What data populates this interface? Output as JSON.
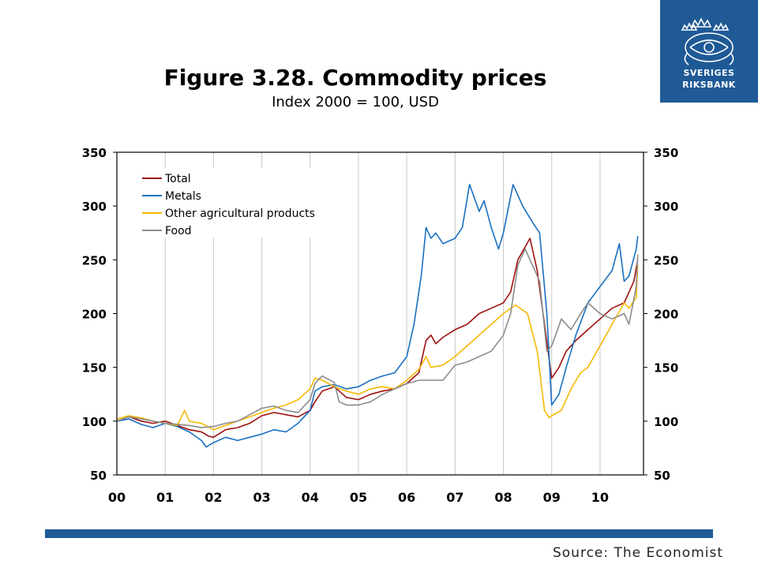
{
  "logo": {
    "line1": "SVERIGES",
    "line2": "RIKSBANK",
    "icon": "crown-crest-icon"
  },
  "source": "Source: The Economist",
  "chart_data": {
    "type": "line",
    "title": "Figure 3.28. Commodity prices",
    "subtitle": "Index 2000 = 100, USD",
    "xlabel": "",
    "ylabel": "",
    "ylim": [
      50,
      350
    ],
    "yticks": [
      50,
      100,
      150,
      200,
      250,
      300,
      350
    ],
    "xlim": [
      2000,
      2010.9
    ],
    "xticks": [
      2000,
      2001,
      2002,
      2003,
      2004,
      2005,
      2006,
      2007,
      2008,
      2009,
      2010
    ],
    "xtick_labels": [
      "00",
      "01",
      "02",
      "03",
      "04",
      "05",
      "06",
      "07",
      "08",
      "09",
      "10"
    ],
    "grid": "vertical",
    "legend": "top-left",
    "series": [
      {
        "name": "Total",
        "color": "#a01010",
        "x": [
          2000,
          2000.25,
          2000.5,
          2000.75,
          2001,
          2001.25,
          2001.5,
          2001.75,
          2001.9,
          2002,
          2002.25,
          2002.5,
          2002.75,
          2003,
          2003.25,
          2003.5,
          2003.75,
          2004,
          2004.1,
          2004.25,
          2004.5,
          2004.75,
          2005,
          2005.25,
          2005.5,
          2005.75,
          2006,
          2006.25,
          2006.4,
          2006.5,
          2006.6,
          2006.75,
          2007,
          2007.25,
          2007.5,
          2007.75,
          2008,
          2008.15,
          2008.3,
          2008.45,
          2008.55,
          2008.7,
          2008.85,
          2009,
          2009.15,
          2009.3,
          2009.5,
          2009.75,
          2010,
          2010.25,
          2010.5,
          2010.7,
          2010.78
        ],
        "y": [
          100,
          104,
          100,
          98,
          100,
          96,
          92,
          90,
          86,
          85,
          92,
          94,
          98,
          105,
          108,
          106,
          104,
          110,
          118,
          128,
          132,
          122,
          120,
          125,
          128,
          130,
          135,
          145,
          175,
          180,
          172,
          178,
          185,
          190,
          200,
          205,
          210,
          220,
          250,
          262,
          270,
          240,
          190,
          140,
          150,
          165,
          175,
          185,
          195,
          205,
          210,
          230,
          250
        ]
      },
      {
        "name": "Metals",
        "color": "#1a6fc0",
        "x": [
          2000,
          2000.25,
          2000.5,
          2000.75,
          2001,
          2001.25,
          2001.5,
          2001.75,
          2001.85,
          2002,
          2002.25,
          2002.5,
          2002.75,
          2003,
          2003.25,
          2003.5,
          2003.75,
          2004,
          2004.1,
          2004.25,
          2004.5,
          2004.75,
          2005,
          2005.25,
          2005.5,
          2005.75,
          2006,
          2006.15,
          2006.3,
          2006.4,
          2006.5,
          2006.6,
          2006.75,
          2007,
          2007.15,
          2007.3,
          2007.5,
          2007.6,
          2007.75,
          2007.9,
          2008,
          2008.2,
          2008.4,
          2008.6,
          2008.75,
          2008.9,
          2009,
          2009.15,
          2009.3,
          2009.5,
          2009.75,
          2010,
          2010.25,
          2010.4,
          2010.5,
          2010.6,
          2010.75,
          2010.78
        ],
        "y": [
          100,
          102,
          97,
          94,
          98,
          95,
          90,
          82,
          76,
          80,
          85,
          82,
          85,
          88,
          92,
          90,
          98,
          110,
          128,
          132,
          134,
          130,
          132,
          138,
          142,
          145,
          160,
          190,
          235,
          280,
          270,
          275,
          265,
          270,
          280,
          320,
          295,
          305,
          280,
          260,
          275,
          320,
          300,
          285,
          275,
          200,
          115,
          125,
          150,
          180,
          210,
          225,
          240,
          265,
          230,
          235,
          260,
          272
        ]
      },
      {
        "name": "Other agricultural products",
        "color": "#f5b800",
        "x": [
          2000,
          2000.25,
          2000.5,
          2000.75,
          2001,
          2001.25,
          2001.4,
          2001.5,
          2001.75,
          2002,
          2002.25,
          2002.5,
          2002.75,
          2003,
          2003.25,
          2003.5,
          2003.75,
          2004,
          2004.1,
          2004.25,
          2004.5,
          2004.75,
          2005,
          2005.25,
          2005.5,
          2005.75,
          2006,
          2006.25,
          2006.4,
          2006.5,
          2006.75,
          2007,
          2007.25,
          2007.5,
          2007.75,
          2008,
          2008.25,
          2008.5,
          2008.7,
          2008.85,
          2008.95,
          2009,
          2009.2,
          2009.4,
          2009.6,
          2009.75,
          2010,
          2010.25,
          2010.5,
          2010.6,
          2010.75,
          2010.78
        ],
        "y": [
          102,
          105,
          103,
          100,
          98,
          96,
          110,
          100,
          98,
          92,
          96,
          100,
          104,
          108,
          112,
          115,
          120,
          130,
          140,
          138,
          132,
          128,
          125,
          130,
          132,
          130,
          138,
          148,
          160,
          150,
          152,
          160,
          170,
          180,
          190,
          200,
          208,
          200,
          165,
          110,
          103,
          105,
          110,
          130,
          145,
          150,
          170,
          190,
          210,
          205,
          215,
          245
        ]
      },
      {
        "name": "Food",
        "color": "#8c8c8c",
        "x": [
          2000,
          2000.25,
          2000.5,
          2000.75,
          2001,
          2001.25,
          2001.5,
          2001.75,
          2002,
          2002.25,
          2002.5,
          2002.75,
          2003,
          2003.25,
          2003.5,
          2003.75,
          2004,
          2004.1,
          2004.25,
          2004.5,
          2004.6,
          2004.75,
          2005,
          2005.25,
          2005.5,
          2005.75,
          2006,
          2006.25,
          2006.5,
          2006.75,
          2007,
          2007.25,
          2007.5,
          2007.75,
          2008,
          2008.15,
          2008.3,
          2008.45,
          2008.6,
          2008.75,
          2008.9,
          2009,
          2009.2,
          2009.4,
          2009.6,
          2009.75,
          2010,
          2010.25,
          2010.5,
          2010.6,
          2010.75,
          2010.78
        ],
        "y": [
          100,
          104,
          102,
          100,
          98,
          97,
          96,
          94,
          95,
          98,
          100,
          106,
          112,
          114,
          110,
          108,
          120,
          135,
          142,
          136,
          118,
          115,
          115,
          118,
          125,
          130,
          135,
          138,
          138,
          138,
          152,
          155,
          160,
          165,
          180,
          200,
          245,
          260,
          245,
          230,
          165,
          170,
          195,
          185,
          200,
          210,
          200,
          195,
          200,
          190,
          225,
          255
        ]
      }
    ]
  }
}
